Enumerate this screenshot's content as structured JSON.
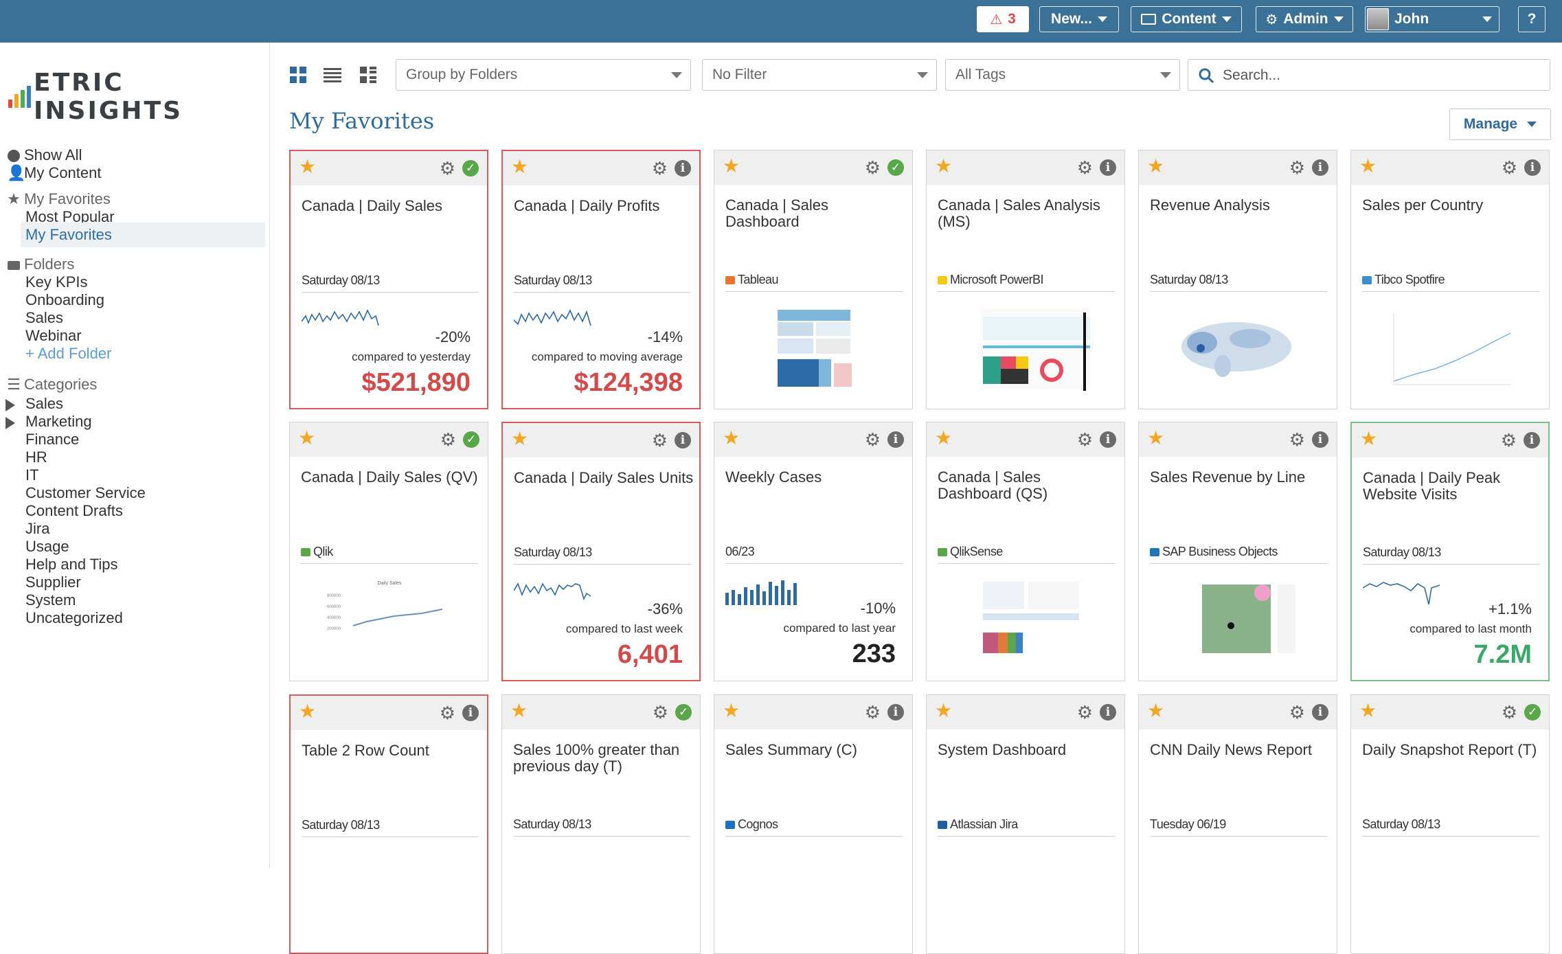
{
  "topbar": {
    "alert_count": "3",
    "new_label": "New...",
    "content_label": "Content",
    "admin_label": "Admin",
    "user_name": "John",
    "help_label": "?"
  },
  "logo_text": "ETRIC INSIGHTS",
  "sidebar": {
    "show_all": "Show All",
    "my_content": "My Content",
    "favorites_header": "My Favorites",
    "favorites": [
      "Most Popular",
      "My Favorites"
    ],
    "folders_header": "Folders",
    "folders": [
      "Key KPIs",
      "Onboarding",
      "Sales",
      "Webinar"
    ],
    "add_folder": "Add Folder",
    "categories_header": "Categories",
    "categories": [
      "Sales",
      "Marketing",
      "Finance",
      "HR",
      "IT",
      "Customer Service",
      "Content Drafts",
      "Jira",
      "Usage",
      "Help and Tips",
      "Supplier",
      "System",
      "Uncategorized"
    ]
  },
  "toolbar": {
    "group_by": "Group by Folders",
    "filter": "No Filter",
    "tags": "All Tags",
    "search_placeholder": "Search..."
  },
  "page": {
    "title": "My Favorites",
    "manage_label": "Manage"
  },
  "colors": {
    "topbar": "#3b7097",
    "accent": "#2e6a9e",
    "alert": "#d94a4a",
    "star": "#f2a623",
    "positive": "#3aa86b",
    "negative": "#d24a4a"
  },
  "cards": [
    {
      "title": "Canada | Daily Sales",
      "sub": "Saturday 08/13",
      "status": "ok",
      "pct": "-20%",
      "compare": "compared to yesterday",
      "value": "$521,890",
      "tone": "red"
    },
    {
      "title": "Canada | Daily Profits",
      "sub": "Saturday 08/13",
      "status": "info",
      "pct": "-14%",
      "compare": "compared to moving average",
      "value": "$124,398",
      "tone": "red"
    },
    {
      "title": "Canada | Sales Dashboard",
      "sub": "Tableau",
      "status": "ok",
      "thumb": "tableau"
    },
    {
      "title": "Canada | Sales Analysis (MS)",
      "sub": "Microsoft PowerBI",
      "status": "info",
      "thumb": "powerbi"
    },
    {
      "title": "Revenue Analysis",
      "sub": "Saturday 08/13",
      "status": "info",
      "thumb": "map"
    },
    {
      "title": "Sales per Country",
      "sub": "Tibco Spotfire",
      "status": "info",
      "thumb": "line"
    },
    {
      "title": "Canada | Daily Sales (QV)",
      "sub": "Qlik",
      "status": "ok",
      "thumb": "qlik",
      "thumb_title": "Daily Sales",
      "thumb_yticks": [
        "800000",
        "600000",
        "400000",
        "200000"
      ]
    },
    {
      "title": "Canada | Daily Sales Units",
      "sub": "Saturday 08/13",
      "status": "info",
      "pct": "-36%",
      "compare": "compared to last week",
      "value": "6,401",
      "tone": "red"
    },
    {
      "title": "Weekly Cases",
      "sub": "06/23",
      "status": "info",
      "pct": "-10%",
      "compare": "compared to last year",
      "value": "233",
      "tone": "dark",
      "bars": true
    },
    {
      "title": "Canada | Sales Dashboard (QS)",
      "sub": "QlikSense",
      "status": "info",
      "thumb": "qs"
    },
    {
      "title": "Sales Revenue by Line",
      "sub": "SAP Business Objects",
      "status": "info",
      "thumb": "sap"
    },
    {
      "title": "Canada | Daily Peak Website Visits",
      "sub": "Saturday 08/13",
      "status": "info",
      "pct": "+1.1%",
      "compare": "compared to last month",
      "value": "7.2M",
      "tone": "green"
    },
    {
      "title": "Table 2 Row Count",
      "sub": "Saturday 08/13",
      "status": "info"
    },
    {
      "title": "Sales 100% greater than previous day (T)",
      "sub": "Saturday 08/13",
      "status": "ok"
    },
    {
      "title": "Sales Summary (C)",
      "sub": "Cognos",
      "status": "info"
    },
    {
      "title": "System Dashboard",
      "sub": "Atlassian Jira",
      "status": "info"
    },
    {
      "title": "CNN Daily News Report",
      "sub": "Tuesday 06/19",
      "status": "info"
    },
    {
      "title": "Daily Snapshot Report (T)",
      "sub": "Saturday 08/13",
      "status": "ok"
    }
  ]
}
